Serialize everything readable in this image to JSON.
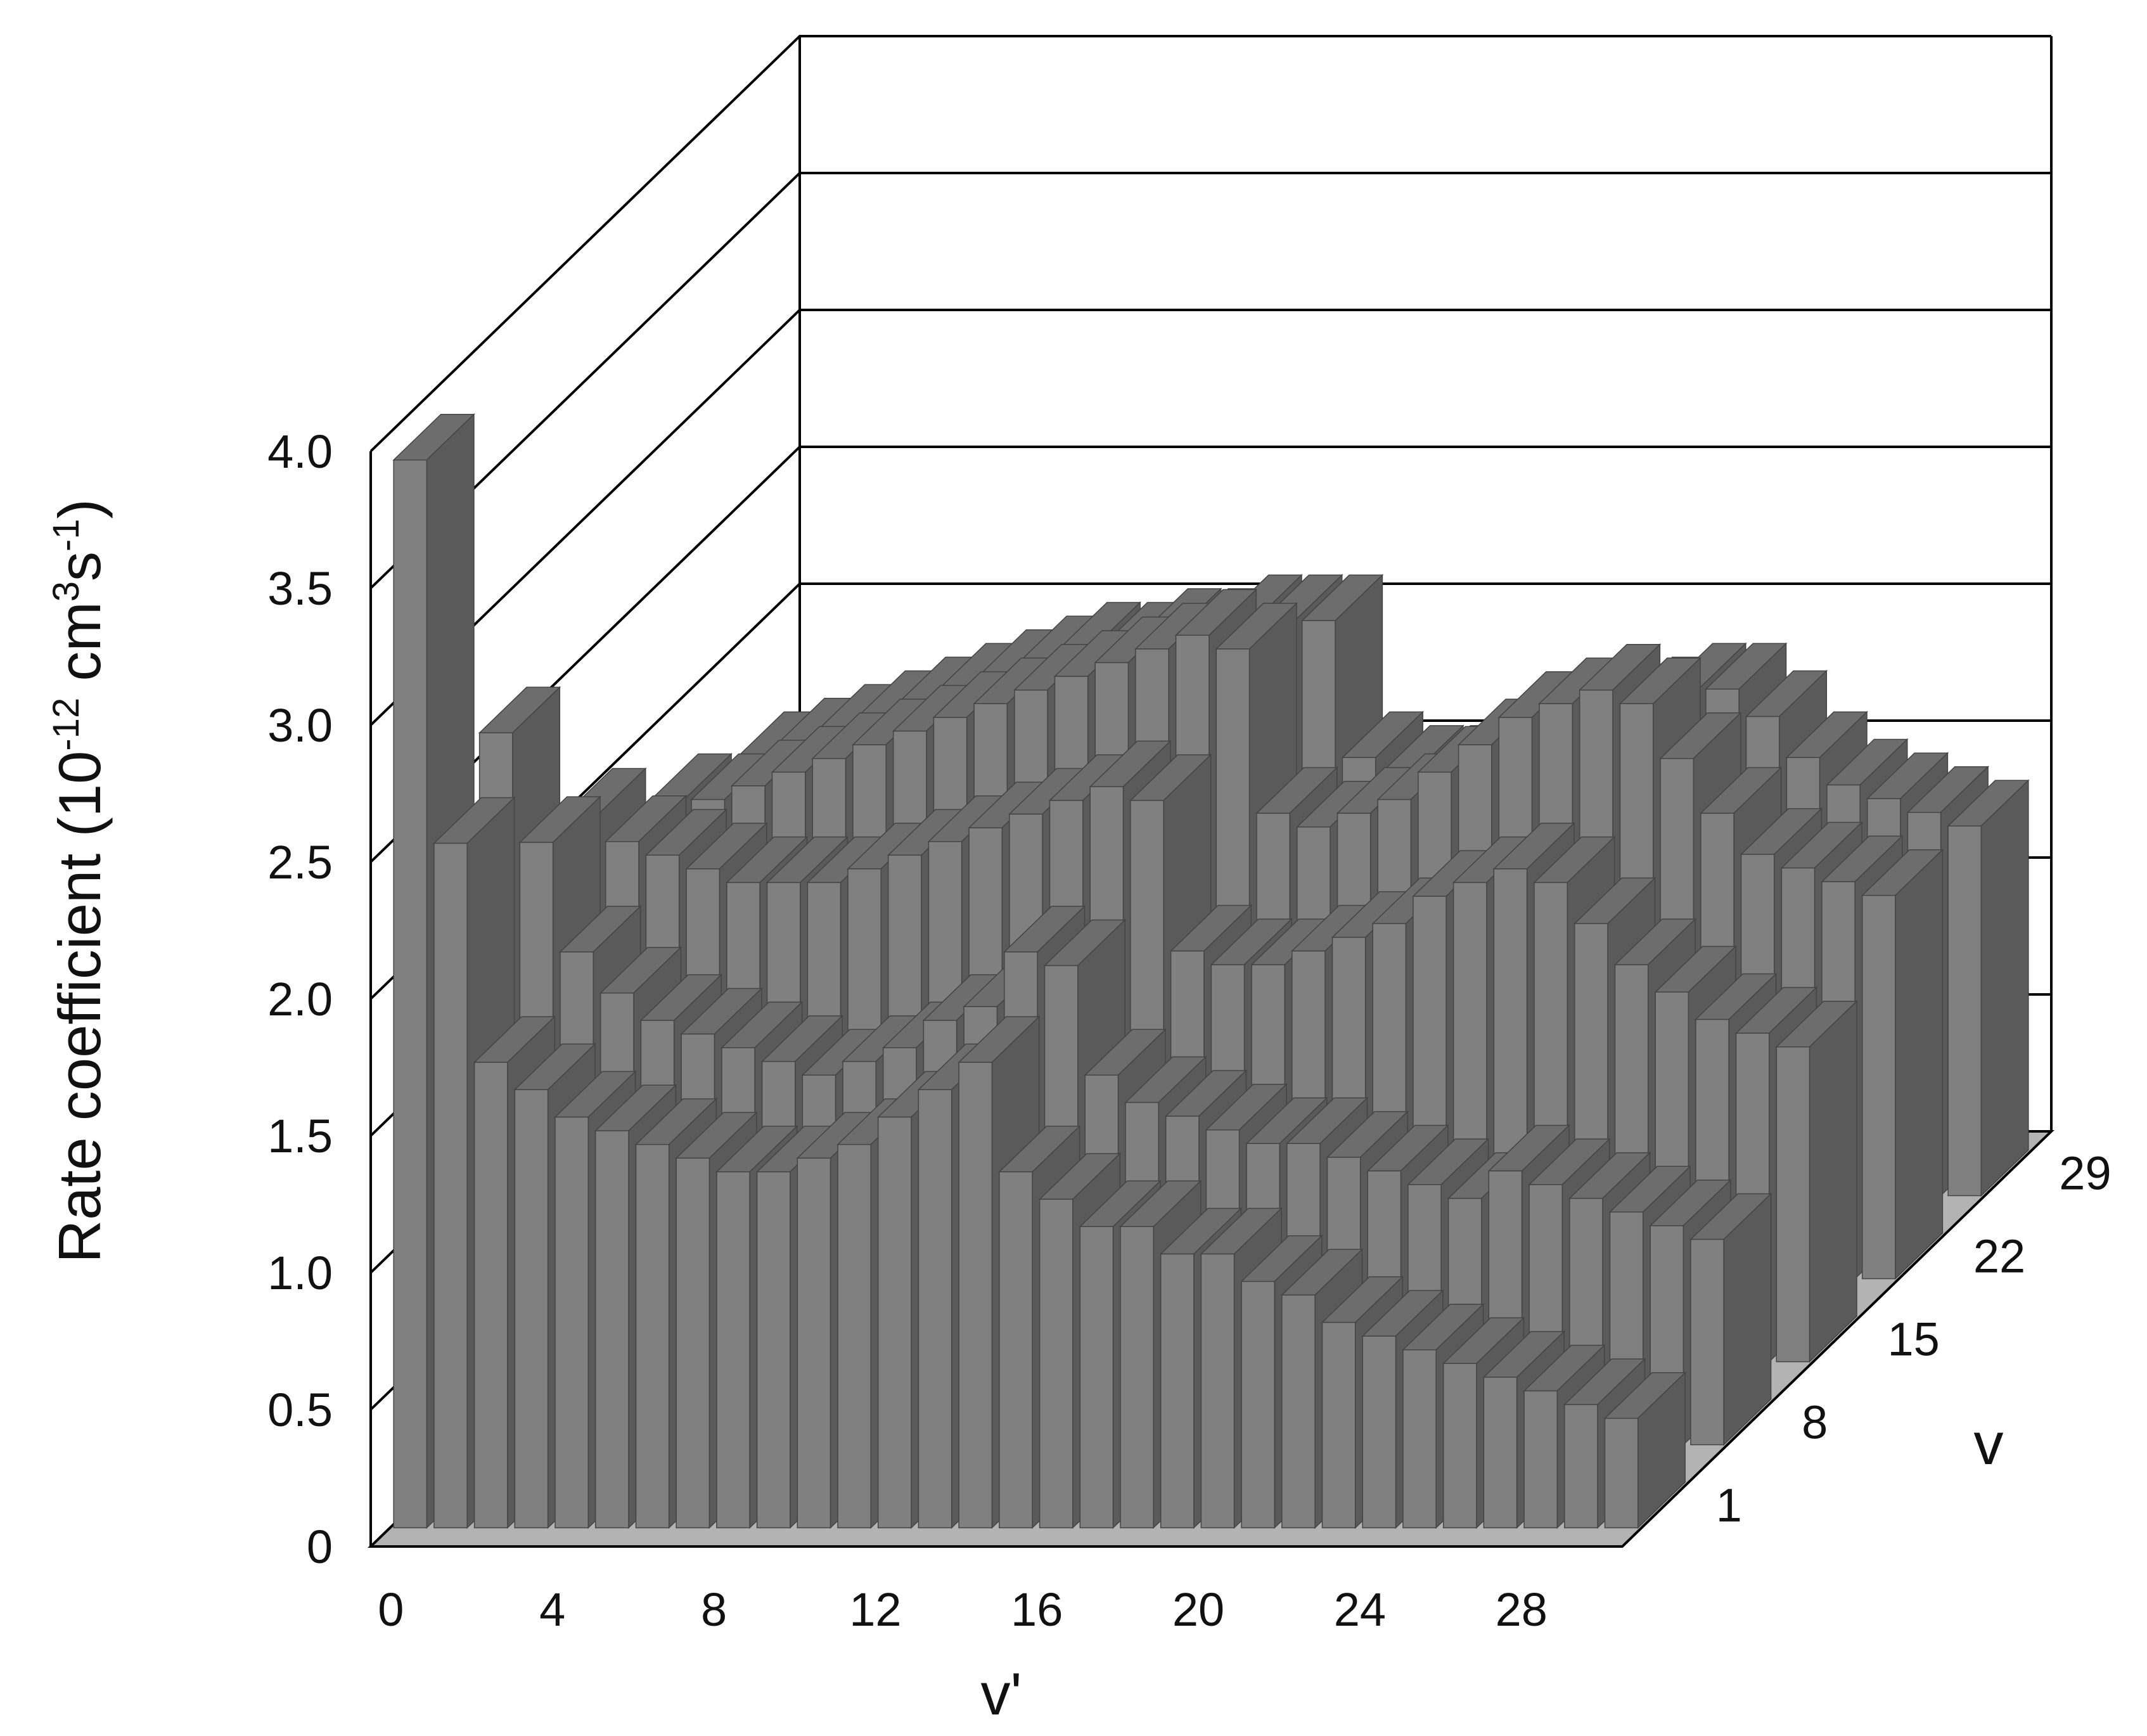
{
  "chart_data": {
    "type": "bar3d",
    "title": "",
    "ylabel": {
      "prefix": "Rate coefficient (10",
      "exp1": "-12",
      "mid": " cm",
      "exp2": "3",
      "mid2": "s",
      "exp3": "-1",
      "suffix": ")"
    },
    "xlabel": "v'",
    "zlabel": "v",
    "zlim": [
      0,
      4.0
    ],
    "grid": true,
    "z_ticks": [
      "0",
      "0.5",
      "1.0",
      "1.5",
      "2.0",
      "2.5",
      "3.0",
      "3.5",
      "4.0"
    ],
    "x_ticks": [
      "0",
      "4",
      "8",
      "12",
      "16",
      "20",
      "24",
      "28"
    ],
    "depth_ticks": [
      "1",
      "8",
      "15",
      "22",
      "29"
    ],
    "x_values": [
      0,
      1,
      2,
      3,
      4,
      5,
      6,
      7,
      8,
      9,
      10,
      11,
      12,
      13,
      14,
      15,
      16,
      17,
      18,
      19,
      20,
      21,
      22,
      23,
      24,
      25,
      26,
      27,
      28,
      29,
      30
    ],
    "series": [
      {
        "v": 1,
        "values": [
          3.9,
          2.5,
          1.7,
          1.6,
          1.5,
          1.45,
          1.4,
          1.35,
          1.3,
          1.3,
          1.35,
          1.4,
          1.5,
          1.6,
          1.7,
          1.3,
          1.2,
          1.1,
          1.1,
          1.0,
          1.0,
          0.9,
          0.85,
          0.75,
          0.7,
          0.65,
          0.6,
          0.55,
          0.5,
          0.45,
          0.4
        ]
      },
      {
        "v": 8,
        "values": [
          2.6,
          2.2,
          1.8,
          1.65,
          1.55,
          1.5,
          1.45,
          1.4,
          1.35,
          1.4,
          1.45,
          1.55,
          1.6,
          1.8,
          1.75,
          1.35,
          1.25,
          1.2,
          1.15,
          1.1,
          1.1,
          1.05,
          1.0,
          0.95,
          0.9,
          1.0,
          0.95,
          0.9,
          0.85,
          0.8,
          0.75
        ]
      },
      {
        "v": 15,
        "values": [
          2.0,
          1.9,
          1.85,
          1.8,
          1.75,
          1.75,
          1.75,
          1.8,
          1.85,
          1.9,
          1.95,
          2.0,
          2.05,
          2.1,
          2.05,
          1.5,
          1.45,
          1.45,
          1.5,
          1.55,
          1.6,
          1.7,
          1.75,
          1.8,
          1.75,
          1.6,
          1.45,
          1.35,
          1.25,
          1.2,
          1.15
        ]
      },
      {
        "v": 22,
        "values": [
          1.75,
          1.75,
          1.8,
          1.85,
          1.9,
          1.95,
          2.0,
          2.05,
          2.1,
          2.15,
          2.2,
          2.25,
          2.3,
          2.35,
          2.3,
          1.7,
          1.65,
          1.7,
          1.75,
          1.85,
          1.95,
          2.05,
          2.1,
          2.15,
          2.1,
          1.9,
          1.7,
          1.55,
          1.5,
          1.45,
          1.4
        ]
      },
      {
        "v": 29,
        "values": [
          1.6,
          1.65,
          1.7,
          1.75,
          1.8,
          1.85,
          1.9,
          1.95,
          2.0,
          2.0,
          2.05,
          2.05,
          2.1,
          2.1,
          2.1,
          1.6,
          1.55,
          1.55,
          1.6,
          1.65,
          1.7,
          1.75,
          1.8,
          1.85,
          1.85,
          1.75,
          1.6,
          1.5,
          1.45,
          1.4,
          1.35
        ]
      }
    ],
    "colors": {
      "bar_front": "#808080",
      "bar_side": "#5a5a5a",
      "bar_top": "#6d6d6d",
      "floor": "#b3b3b3",
      "gridline": "#000000"
    }
  }
}
